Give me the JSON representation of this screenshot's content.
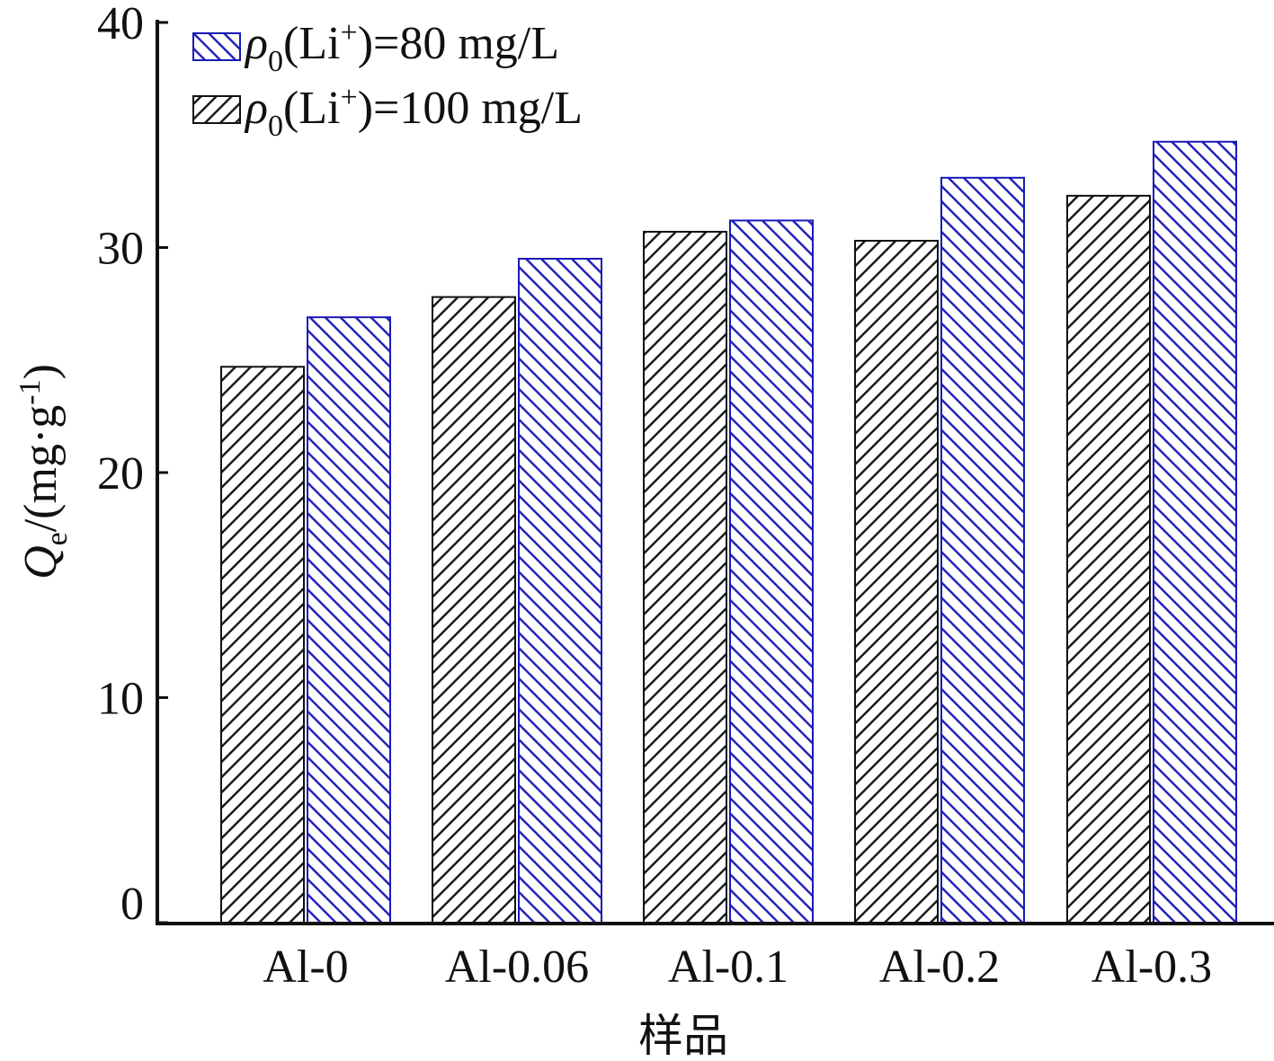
{
  "chart_data": {
    "type": "bar",
    "categories": [
      "Al-0",
      "Al-0.06",
      "Al-0.1",
      "Al-0.2",
      "Al-0.3"
    ],
    "series": [
      {
        "name_prefix": "ρ",
        "name_sub": "0",
        "name_mid": "(Li",
        "name_sup": "+",
        "name_suffix": ")=100 mg/L",
        "values": [
          24.7,
          27.8,
          30.7,
          30.3,
          32.3
        ],
        "color": "#111111"
      },
      {
        "name_prefix": "ρ",
        "name_sub": "0",
        "name_mid": "(Li",
        "name_sup": "+",
        "name_suffix": ")=80 mg/L",
        "values": [
          26.9,
          29.5,
          31.2,
          33.1,
          34.7
        ],
        "color": "#1a1ab8"
      }
    ],
    "yticks": [
      "0",
      "10",
      "20",
      "30",
      "40"
    ],
    "ylim": [
      0,
      40
    ],
    "xlabel": "样品",
    "ylabel_var": "Q",
    "ylabel_sub": "e",
    "ylabel_unit_open": "/(mg·g",
    "ylabel_unit_sup": "-1",
    "ylabel_unit_close": ")",
    "legend_position": "top-left",
    "grid": false
  }
}
